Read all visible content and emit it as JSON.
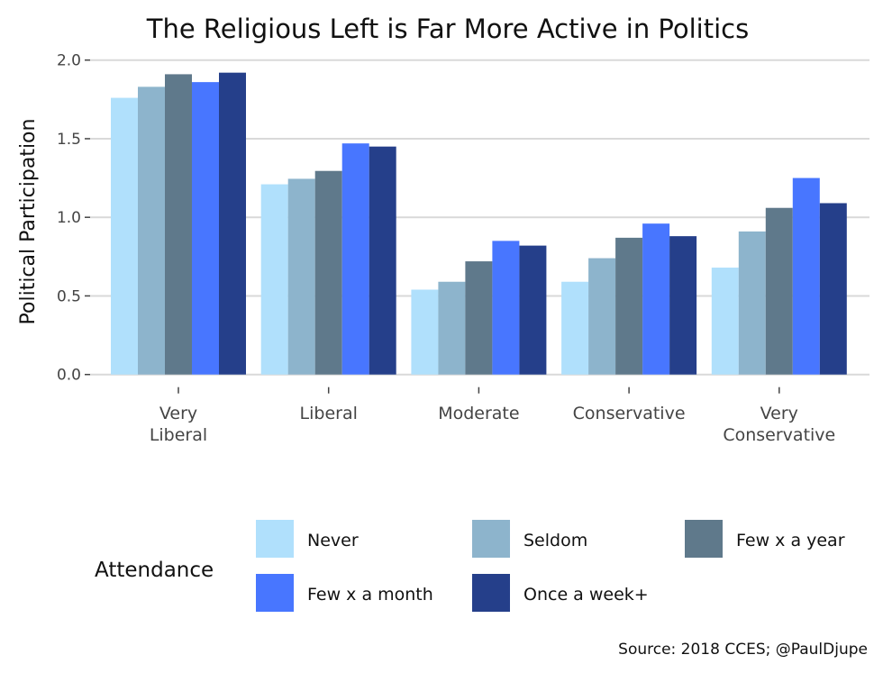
{
  "chart_data": {
    "type": "bar",
    "title": "The Religious Left is Far More Active in Politics",
    "xlabel": "",
    "ylabel": "Political Participation",
    "ylim": [
      0,
      2.0
    ],
    "yticks": [
      "0.0",
      "0.5",
      "1.0",
      "1.5",
      "2.0"
    ],
    "grid": true,
    "categories": [
      "Very\nLiberal",
      "Liberal",
      "Moderate",
      "Conservative",
      "Very\nConservative"
    ],
    "legend": {
      "title": "Attendance",
      "placement": "bottom"
    },
    "series": [
      {
        "name": "Never",
        "color": "#b0e0fc",
        "values": [
          1.76,
          1.21,
          0.54,
          0.59,
          0.68
        ]
      },
      {
        "name": "Seldom",
        "color": "#8db4cc",
        "values": [
          1.83,
          1.245,
          0.59,
          0.74,
          0.91
        ]
      },
      {
        "name": "Few x a year",
        "color": "#5f798b",
        "values": [
          1.91,
          1.295,
          0.72,
          0.87,
          1.06
        ]
      },
      {
        "name": "Few x a month",
        "color": "#4876ff",
        "values": [
          1.86,
          1.47,
          0.85,
          0.96,
          1.25
        ]
      },
      {
        "name": "Once a week+",
        "color": "#253f8a",
        "values": [
          1.92,
          1.45,
          0.82,
          0.88,
          1.09
        ]
      }
    ],
    "caption": "Source: 2018 CCES; @PaulDjupe"
  }
}
